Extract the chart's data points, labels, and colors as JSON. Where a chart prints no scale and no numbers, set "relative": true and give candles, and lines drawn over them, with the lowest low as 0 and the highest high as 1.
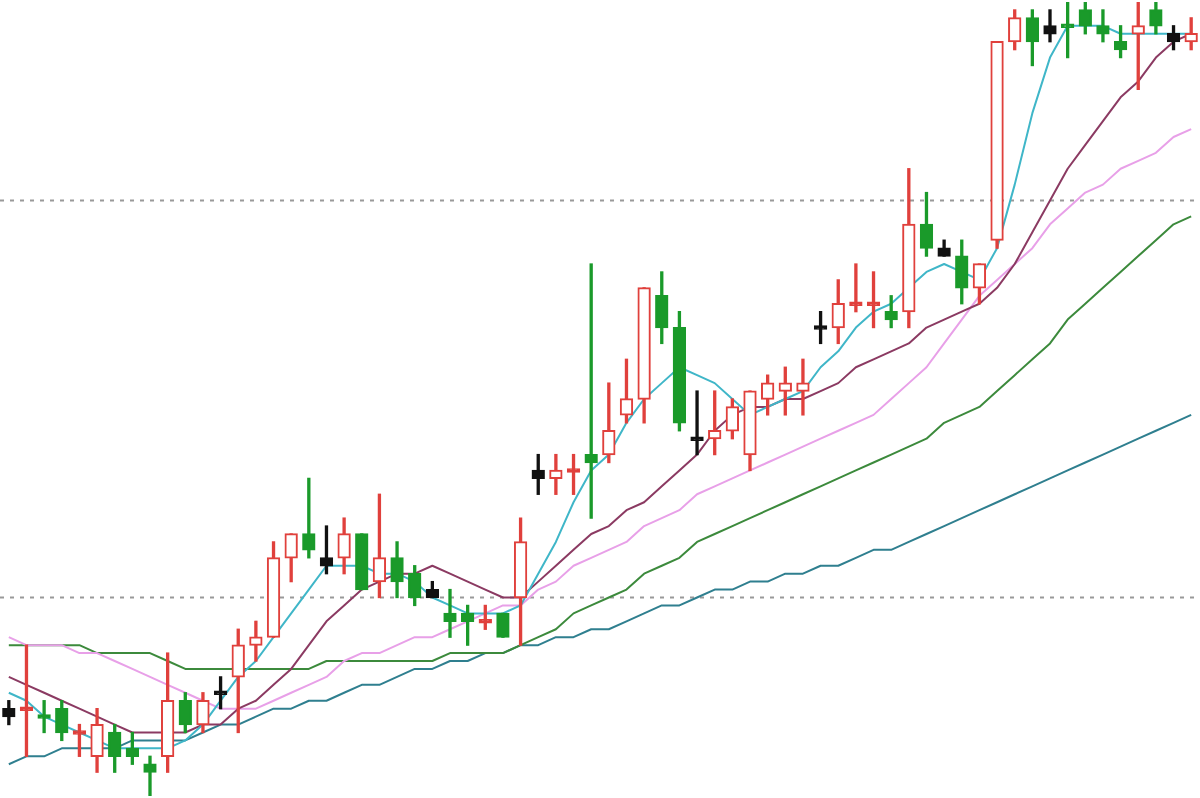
{
  "chart_data": {
    "type": "candlestick",
    "relative": true,
    "categories": [
      null,
      null,
      null,
      null,
      null,
      null,
      null,
      null,
      null,
      null,
      null,
      null,
      null,
      null,
      null,
      null,
      null,
      null,
      null,
      null,
      null,
      null,
      null,
      null,
      null,
      null,
      null,
      null,
      null,
      null,
      null,
      null,
      null,
      null,
      null,
      null,
      null,
      null,
      null,
      null,
      null,
      null,
      null,
      null,
      null,
      null,
      null,
      null,
      null,
      null,
      null,
      null,
      null,
      null,
      null,
      null,
      null,
      null,
      null,
      null,
      null,
      null,
      null,
      null,
      null,
      null,
      null,
      null
    ],
    "ohlc": [
      [
        0.11,
        0.12,
        0.09,
        0.1
      ],
      [
        0.11,
        0.19,
        0.05,
        0.11
      ],
      [
        0.1,
        0.12,
        0.08,
        0.1
      ],
      [
        0.11,
        0.12,
        0.07,
        0.08
      ],
      [
        0.08,
        0.09,
        0.05,
        0.08
      ],
      [
        0.05,
        0.11,
        0.03,
        0.09
      ],
      [
        0.08,
        0.09,
        0.03,
        0.05
      ],
      [
        0.06,
        0.08,
        0.04,
        0.05
      ],
      [
        0.04,
        0.05,
        0.0,
        0.03
      ],
      [
        0.05,
        0.18,
        0.03,
        0.12
      ],
      [
        0.12,
        0.13,
        0.08,
        0.09
      ],
      [
        0.09,
        0.13,
        0.08,
        0.12
      ],
      [
        0.13,
        0.15,
        0.11,
        0.13
      ],
      [
        0.15,
        0.21,
        0.08,
        0.19
      ],
      [
        0.19,
        0.22,
        0.17,
        0.2
      ],
      [
        0.2,
        0.32,
        0.2,
        0.3
      ],
      [
        0.3,
        0.33,
        0.27,
        0.33
      ],
      [
        0.33,
        0.4,
        0.3,
        0.31
      ],
      [
        0.3,
        0.34,
        0.28,
        0.29
      ],
      [
        0.3,
        0.35,
        0.28,
        0.33
      ],
      [
        0.33,
        0.33,
        0.26,
        0.26
      ],
      [
        0.27,
        0.38,
        0.25,
        0.3
      ],
      [
        0.3,
        0.32,
        0.25,
        0.27
      ],
      [
        0.28,
        0.29,
        0.24,
        0.25
      ],
      [
        0.26,
        0.27,
        0.25,
        0.25
      ],
      [
        0.23,
        0.26,
        0.2,
        0.22
      ],
      [
        0.23,
        0.24,
        0.19,
        0.22
      ],
      [
        0.22,
        0.24,
        0.21,
        0.22
      ],
      [
        0.23,
        0.23,
        0.2,
        0.2
      ],
      [
        0.25,
        0.35,
        0.19,
        0.32
      ],
      [
        0.41,
        0.43,
        0.38,
        0.4
      ],
      [
        0.4,
        0.43,
        0.38,
        0.41
      ],
      [
        0.41,
        0.43,
        0.38,
        0.41
      ],
      [
        0.43,
        0.67,
        0.35,
        0.42
      ],
      [
        0.43,
        0.52,
        0.42,
        0.46
      ],
      [
        0.48,
        0.55,
        0.47,
        0.5
      ],
      [
        0.5,
        0.64,
        0.47,
        0.64
      ],
      [
        0.63,
        0.66,
        0.57,
        0.59
      ],
      [
        0.59,
        0.61,
        0.46,
        0.47
      ],
      [
        0.45,
        0.51,
        0.43,
        0.45
      ],
      [
        0.45,
        0.51,
        0.43,
        0.46
      ],
      [
        0.46,
        0.5,
        0.45,
        0.49
      ],
      [
        0.43,
        0.51,
        0.41,
        0.51
      ],
      [
        0.5,
        0.53,
        0.48,
        0.52
      ],
      [
        0.51,
        0.54,
        0.48,
        0.52
      ],
      [
        0.51,
        0.55,
        0.48,
        0.52
      ],
      [
        0.59,
        0.61,
        0.57,
        0.59
      ],
      [
        0.59,
        0.65,
        0.57,
        0.62
      ],
      [
        0.62,
        0.67,
        0.61,
        0.62
      ],
      [
        0.62,
        0.66,
        0.59,
        0.62
      ],
      [
        0.61,
        0.63,
        0.59,
        0.6
      ],
      [
        0.61,
        0.79,
        0.59,
        0.72
      ],
      [
        0.72,
        0.76,
        0.68,
        0.69
      ],
      [
        0.69,
        0.7,
        0.68,
        0.68
      ],
      [
        0.68,
        0.7,
        0.62,
        0.64
      ],
      [
        0.64,
        0.67,
        0.62,
        0.67
      ],
      [
        0.7,
        0.95,
        0.69,
        0.95
      ],
      [
        0.95,
        0.99,
        0.94,
        0.98
      ],
      [
        0.98,
        0.99,
        0.92,
        0.95
      ],
      [
        0.97,
        0.99,
        0.95,
        0.96
      ],
      [
        0.97,
        1.0,
        0.93,
        0.97
      ],
      [
        0.99,
        1.0,
        0.96,
        0.97
      ],
      [
        0.97,
        0.99,
        0.95,
        0.96
      ],
      [
        0.95,
        0.97,
        0.93,
        0.94
      ],
      [
        0.96,
        1.0,
        0.89,
        0.97
      ],
      [
        0.99,
        1.0,
        0.96,
        0.97
      ],
      [
        0.96,
        0.97,
        0.94,
        0.95
      ],
      [
        0.95,
        0.98,
        0.94,
        0.96
      ]
    ],
    "colors": [
      "#111111",
      "#e0403c",
      "#1a9a2a",
      "#1a9a2a",
      "#e0403c",
      "#e0403c",
      "#1a9a2a",
      "#1a9a2a",
      "#1a9a2a",
      "#e0403c",
      "#1a9a2a",
      "#e0403c",
      "#111111",
      "#e0403c",
      "#e0403c",
      "#e0403c",
      "#e0403c",
      "#1a9a2a",
      "#111111",
      "#e0403c",
      "#1a9a2a",
      "#e0403c",
      "#1a9a2a",
      "#1a9a2a",
      "#111111",
      "#1a9a2a",
      "#1a9a2a",
      "#e0403c",
      "#1a9a2a",
      "#e0403c",
      "#111111",
      "#e0403c",
      "#e0403c",
      "#1a9a2a",
      "#e0403c",
      "#e0403c",
      "#e0403c",
      "#1a9a2a",
      "#1a9a2a",
      "#111111",
      "#e0403c",
      "#e0403c",
      "#e0403c",
      "#e0403c",
      "#e0403c",
      "#e0403c",
      "#111111",
      "#e0403c",
      "#e0403c",
      "#e0403c",
      "#1a9a2a",
      "#e0403c",
      "#1a9a2a",
      "#111111",
      "#1a9a2a",
      "#e0403c",
      "#e0403c",
      "#e0403c",
      "#1a9a2a",
      "#111111",
      "#1a9a2a",
      "#1a9a2a",
      "#1a9a2a",
      "#1a9a2a",
      "#e0403c",
      "#1a9a2a",
      "#111111",
      "#e0403c"
    ],
    "series": [
      {
        "type": "line",
        "color": "#3fb6c8",
        "values": [
          0.13,
          0.12,
          0.1,
          0.09,
          0.08,
          0.07,
          0.06,
          0.06,
          0.06,
          0.06,
          0.07,
          0.09,
          0.12,
          0.15,
          0.17,
          0.2,
          0.23,
          0.26,
          0.29,
          0.29,
          0.29,
          0.28,
          0.28,
          0.27,
          0.25,
          0.24,
          0.23,
          0.23,
          0.23,
          0.24,
          0.28,
          0.32,
          0.37,
          0.41,
          0.43,
          0.47,
          0.5,
          0.52,
          0.54,
          0.53,
          0.52,
          0.5,
          0.48,
          0.49,
          0.5,
          0.51,
          0.54,
          0.56,
          0.59,
          0.61,
          0.62,
          0.64,
          0.66,
          0.67,
          0.66,
          0.65,
          0.69,
          0.77,
          0.86,
          0.93,
          0.97,
          0.97,
          0.97,
          0.96,
          0.96,
          0.96,
          0.96,
          0.96
        ]
      },
      {
        "type": "line",
        "color": "#8b3a62",
        "values": [
          0.15,
          0.14,
          0.13,
          0.12,
          0.11,
          0.1,
          0.09,
          0.08,
          0.08,
          0.08,
          0.08,
          0.09,
          0.09,
          0.11,
          0.12,
          0.14,
          0.16,
          0.19,
          0.22,
          0.24,
          0.26,
          0.27,
          0.28,
          0.28,
          0.29,
          0.28,
          0.27,
          0.26,
          0.25,
          0.25,
          0.27,
          0.29,
          0.31,
          0.33,
          0.34,
          0.36,
          0.37,
          0.39,
          0.41,
          0.43,
          0.46,
          0.48,
          0.49,
          0.49,
          0.5,
          0.5,
          0.51,
          0.52,
          0.54,
          0.55,
          0.56,
          0.57,
          0.59,
          0.6,
          0.61,
          0.62,
          0.64,
          0.67,
          0.71,
          0.75,
          0.79,
          0.82,
          0.85,
          0.88,
          0.9,
          0.93,
          0.95,
          0.96
        ]
      },
      {
        "type": "line",
        "color": "#e8a0e8",
        "values": [
          0.2,
          0.19,
          0.19,
          0.19,
          0.18,
          0.18,
          0.17,
          0.16,
          0.15,
          0.14,
          0.13,
          0.12,
          0.11,
          0.11,
          0.11,
          0.12,
          0.13,
          0.14,
          0.15,
          0.17,
          0.18,
          0.18,
          0.19,
          0.2,
          0.2,
          0.21,
          0.22,
          0.23,
          0.24,
          0.24,
          0.26,
          0.27,
          0.29,
          0.3,
          0.31,
          0.32,
          0.34,
          0.35,
          0.36,
          0.38,
          0.39,
          0.4,
          0.41,
          0.42,
          0.43,
          0.44,
          0.45,
          0.46,
          0.47,
          0.48,
          0.5,
          0.52,
          0.54,
          0.57,
          0.6,
          0.63,
          0.65,
          0.67,
          0.69,
          0.72,
          0.74,
          0.76,
          0.77,
          0.79,
          0.8,
          0.81,
          0.83,
          0.84
        ]
      },
      {
        "type": "line",
        "color": "#3c8a3c",
        "values": [
          0.19,
          0.19,
          0.19,
          0.19,
          0.19,
          0.18,
          0.18,
          0.18,
          0.18,
          0.17,
          0.16,
          0.16,
          0.16,
          0.16,
          0.16,
          0.16,
          0.16,
          0.16,
          0.17,
          0.17,
          0.17,
          0.17,
          0.17,
          0.17,
          0.17,
          0.18,
          0.18,
          0.18,
          0.18,
          0.19,
          0.2,
          0.21,
          0.23,
          0.24,
          0.25,
          0.26,
          0.28,
          0.29,
          0.3,
          0.32,
          0.33,
          0.34,
          0.35,
          0.36,
          0.37,
          0.38,
          0.39,
          0.4,
          0.41,
          0.42,
          0.43,
          0.44,
          0.45,
          0.47,
          0.48,
          0.49,
          0.51,
          0.53,
          0.55,
          0.57,
          0.6,
          0.62,
          0.64,
          0.66,
          0.68,
          0.7,
          0.72,
          0.73
        ]
      },
      {
        "type": "line",
        "color": "#2f7f8f",
        "values": [
          0.04,
          0.05,
          0.05,
          0.06,
          0.06,
          0.06,
          0.06,
          0.07,
          0.07,
          0.07,
          0.07,
          0.08,
          0.09,
          0.09,
          0.1,
          0.11,
          0.11,
          0.12,
          0.12,
          0.13,
          0.14,
          0.14,
          0.15,
          0.16,
          0.16,
          0.17,
          0.17,
          0.18,
          0.18,
          0.19,
          0.19,
          0.2,
          0.2,
          0.21,
          0.21,
          0.22,
          0.23,
          0.24,
          0.24,
          0.25,
          0.26,
          0.26,
          0.27,
          0.27,
          0.28,
          0.28,
          0.29,
          0.29,
          0.3,
          0.31,
          0.31,
          0.32,
          0.33,
          0.34,
          0.35,
          0.36,
          0.37,
          0.38,
          0.39,
          0.4,
          0.41,
          0.42,
          0.43,
          0.44,
          0.45,
          0.46,
          0.47,
          0.48
        ]
      }
    ],
    "ref_lines": [
      {
        "axis": "y",
        "value": 0.75,
        "color": "#999999",
        "line_style": "dotted"
      },
      {
        "axis": "y",
        "value": 0.25,
        "color": "#999999",
        "line_style": "dotted"
      }
    ]
  }
}
